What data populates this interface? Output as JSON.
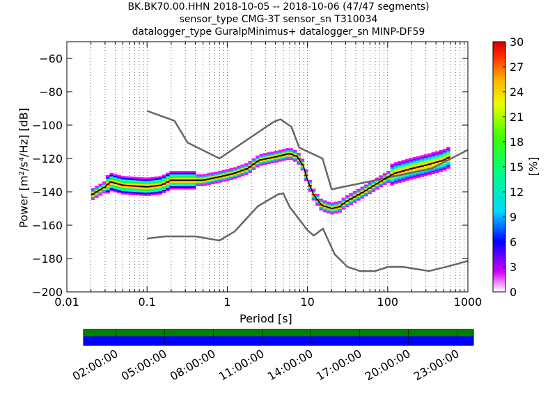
{
  "chart_data": {
    "type": "heatmap",
    "title_lines": [
      "BK.BK70.00.HHN   2018-10-05 -- 2018-10-06  (47/47 segments)",
      "sensor_type CMG-3T sensor_sn T310034",
      "datalogger_type GuralpMinimus+ datalogger_sn MINP-DF59"
    ],
    "xlabel": "Period [s]",
    "ylabel": "Power [m²/s⁴/Hz] [dB]",
    "x_scale": "log",
    "xlim": [
      0.01,
      1000
    ],
    "ylim": [
      -200,
      -50
    ],
    "x_ticks": [
      0.01,
      0.1,
      1,
      10,
      100,
      1000
    ],
    "x_tick_labels": [
      "0.01",
      "0.1",
      "1",
      "10",
      "100",
      "1000"
    ],
    "y_ticks": [
      -200,
      -180,
      -160,
      -140,
      -120,
      -100,
      -80,
      -60
    ],
    "y_tick_labels": [
      "−200",
      "−180",
      "−160",
      "−140",
      "−120",
      "−100",
      "−80",
      "−60"
    ],
    "grid": "dotted vertical at log minor ticks",
    "colorbar": {
      "label": "[%]",
      "range": [
        0,
        30
      ],
      "ticks": [
        0,
        3,
        6,
        9,
        12,
        15,
        18,
        21,
        24,
        27,
        30
      ],
      "tick_labels": [
        "0",
        "3",
        "6",
        "9",
        "12",
        "15",
        "18",
        "21",
        "24",
        "27",
        "30"
      ]
    },
    "series": [
      {
        "role": "high noise model",
        "color": "#666666",
        "points": [
          [
            0.1,
            -91.5
          ],
          [
            0.22,
            -97.4
          ],
          [
            0.32,
            -110.5
          ],
          [
            0.8,
            -120
          ],
          [
            3.8,
            -98
          ],
          [
            4.6,
            -96.5
          ],
          [
            6.3,
            -101
          ],
          [
            7.9,
            -113.5
          ],
          [
            15.4,
            -120
          ],
          [
            20,
            -138.5
          ],
          [
            354.8,
            -126
          ],
          [
            10000,
            -90
          ]
        ]
      },
      {
        "role": "low noise model",
        "color": "#666666",
        "points": [
          [
            0.1,
            -168
          ],
          [
            0.17,
            -166.7
          ],
          [
            0.4,
            -166.7
          ],
          [
            0.8,
            -169.2
          ],
          [
            1.24,
            -163.7
          ],
          [
            2.4,
            -148.7
          ],
          [
            4.3,
            -141.5
          ],
          [
            5,
            -141
          ],
          [
            6,
            -149
          ],
          [
            10,
            -163
          ],
          [
            12,
            -166.2
          ],
          [
            15.6,
            -162.1
          ],
          [
            21.9,
            -177.5
          ],
          [
            31.6,
            -185
          ],
          [
            45,
            -187.5
          ],
          [
            70,
            -187.5
          ],
          [
            101,
            -185
          ],
          [
            154,
            -185
          ],
          [
            328,
            -187.5
          ],
          [
            600,
            -184.4
          ],
          [
            10000,
            -168
          ]
        ]
      },
      {
        "role": "PSD mode (black)",
        "color": "#000000",
        "points": [
          [
            0.02,
            -142
          ],
          [
            0.03,
            -137
          ],
          [
            0.035,
            -134
          ],
          [
            0.05,
            -136
          ],
          [
            0.1,
            -137
          ],
          [
            0.15,
            -136
          ],
          [
            0.2,
            -133
          ],
          [
            0.3,
            -133
          ],
          [
            0.5,
            -133
          ],
          [
            0.8,
            -131
          ],
          [
            1.2,
            -129
          ],
          [
            1.8,
            -126
          ],
          [
            2.5,
            -121
          ],
          [
            4,
            -119
          ],
          [
            6,
            -117
          ],
          [
            7.5,
            -119
          ],
          [
            9,
            -125
          ],
          [
            10,
            -133
          ],
          [
            12,
            -142
          ],
          [
            15,
            -148
          ],
          [
            20,
            -150
          ],
          [
            25,
            -149
          ],
          [
            30,
            -146
          ],
          [
            50,
            -140
          ],
          [
            80,
            -134
          ],
          [
            120,
            -129
          ],
          [
            200,
            -126
          ],
          [
            300,
            -124
          ],
          [
            500,
            -121
          ],
          [
            600,
            -119
          ]
        ]
      }
    ],
    "time_axis": {
      "tick_labels": [
        "02:00:00",
        "05:00:00",
        "08:00:00",
        "11:00:00",
        "14:00:00",
        "17:00:00",
        "20:00:00",
        "23:00:00"
      ],
      "tick_hours": [
        2,
        5,
        8,
        11,
        14,
        17,
        20,
        23
      ],
      "range_hours": [
        0,
        24
      ],
      "data_coverage_color": "#008000",
      "gap_free_color": "#0000ff"
    }
  }
}
